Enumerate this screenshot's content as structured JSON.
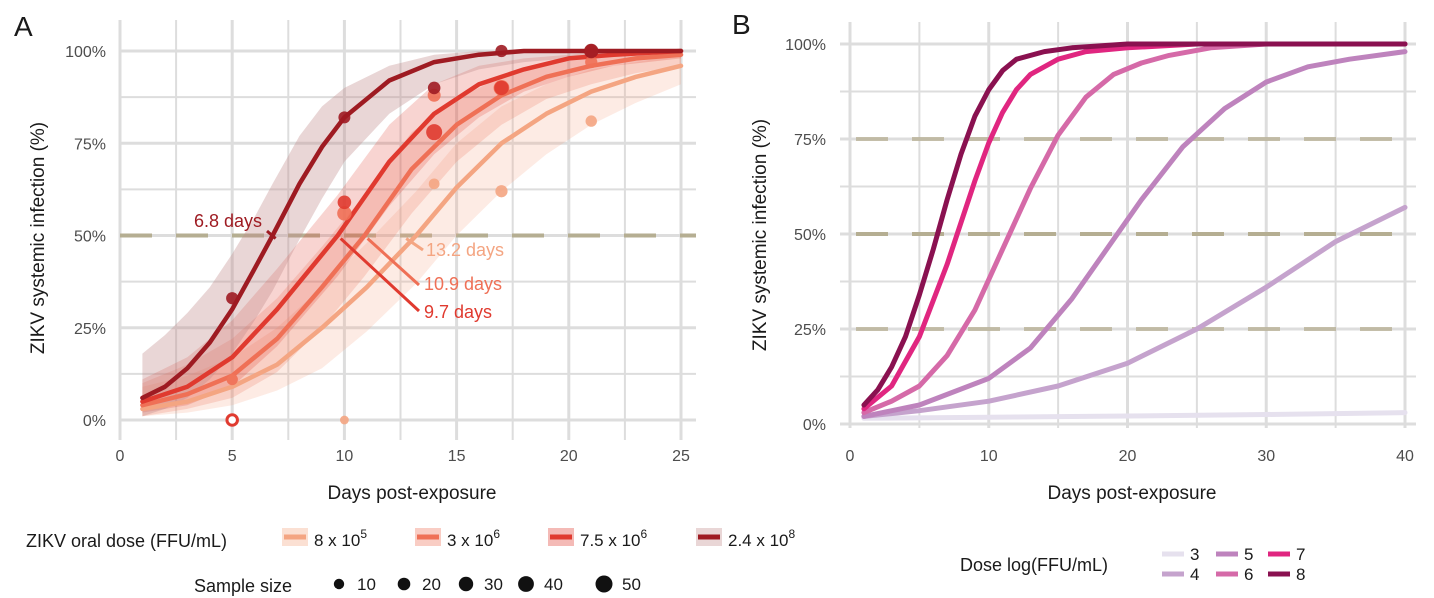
{
  "colors": {
    "grid": "#dddddd",
    "ref_line": "#b5ae92",
    "dose_A": [
      "#f4a582",
      "#ef7056",
      "#e03a2f",
      "#9e1b22"
    ],
    "dose_B": [
      "#e6e1ee",
      "#c5a3cd",
      "#be83bd",
      "#d56aa8",
      "#e02680",
      "#8a1150"
    ]
  },
  "chart_data": [
    {
      "panel": "A",
      "type": "line",
      "xlabel": "Days post-exposure",
      "ylabel": "ZIKV systemic infection (%)",
      "xlim": [
        0,
        25.5
      ],
      "ylim": [
        -0.03,
        1.04
      ],
      "x_ticks": [
        "0",
        "5",
        "10",
        "15",
        "20",
        "25"
      ],
      "y_ticks": [
        "0%",
        "25%",
        "50%",
        "75%",
        "100%"
      ],
      "grid": true,
      "reference_lines": [
        0.5
      ],
      "series": [
        {
          "name": "8 x 10^5",
          "label_base": "8 x 10",
          "label_exp": "5",
          "x": [
            1,
            3,
            5,
            7,
            9,
            11,
            13.2,
            15,
            17,
            19,
            21,
            23,
            25
          ],
          "y": [
            0.03,
            0.05,
            0.09,
            0.15,
            0.25,
            0.36,
            0.5,
            0.63,
            0.75,
            0.83,
            0.89,
            0.93,
            0.96
          ],
          "ci_lower": [
            0.01,
            0.02,
            0.04,
            0.08,
            0.14,
            0.24,
            0.37,
            0.5,
            0.62,
            0.72,
            0.8,
            0.86,
            0.91
          ],
          "ci_upper": [
            0.09,
            0.12,
            0.17,
            0.25,
            0.36,
            0.48,
            0.62,
            0.75,
            0.85,
            0.91,
            0.95,
            0.97,
            0.99
          ],
          "points": [
            {
              "x": 5,
              "y": 0.11,
              "n": 10
            },
            {
              "x": 10,
              "y": 0.0,
              "n": 5
            },
            {
              "x": 14,
              "y": 0.64,
              "n": 12
            },
            {
              "x": 17,
              "y": 0.62,
              "n": 18
            },
            {
              "x": 21,
              "y": 0.81,
              "n": 14
            }
          ]
        },
        {
          "name": "3 x 10^6",
          "label_base": "3 x 10",
          "label_exp": "6",
          "x": [
            1,
            3,
            5,
            7,
            9,
            10.9,
            13,
            15,
            17,
            19,
            21,
            23,
            25
          ],
          "y": [
            0.04,
            0.07,
            0.12,
            0.22,
            0.36,
            0.5,
            0.68,
            0.8,
            0.88,
            0.93,
            0.96,
            0.98,
            0.99
          ],
          "ci_lower": [
            0.01,
            0.03,
            0.06,
            0.13,
            0.25,
            0.39,
            0.56,
            0.7,
            0.8,
            0.87,
            0.91,
            0.94,
            0.96
          ],
          "ci_upper": [
            0.1,
            0.15,
            0.22,
            0.33,
            0.47,
            0.61,
            0.78,
            0.87,
            0.93,
            0.97,
            0.99,
            0.99,
            1.0
          ],
          "points": [
            {
              "x": 5,
              "y": 0.11,
              "n": 14
            },
            {
              "x": 10,
              "y": 0.56,
              "n": 30
            },
            {
              "x": 14,
              "y": 0.88,
              "n": 22
            },
            {
              "x": 17,
              "y": 0.9,
              "n": 40
            },
            {
              "x": 21,
              "y": 0.97,
              "n": 18
            }
          ]
        },
        {
          "name": "7.5 x 10^6",
          "label_base": "7.5 x 10",
          "label_exp": "6",
          "x": [
            1,
            3,
            5,
            7,
            9.7,
            12,
            14,
            16,
            18,
            20,
            22,
            25
          ],
          "y": [
            0.05,
            0.09,
            0.17,
            0.3,
            0.5,
            0.7,
            0.83,
            0.91,
            0.95,
            0.98,
            0.99,
            1.0
          ],
          "ci_lower": [
            0.02,
            0.04,
            0.09,
            0.2,
            0.39,
            0.58,
            0.72,
            0.82,
            0.89,
            0.93,
            0.96,
            0.98
          ],
          "ci_upper": [
            0.11,
            0.17,
            0.27,
            0.41,
            0.61,
            0.8,
            0.91,
            0.96,
            0.98,
            0.99,
            1.0,
            1.0
          ],
          "points": [
            {
              "x": 5,
              "y": 0.0,
              "n": 25
            },
            {
              "x": 10,
              "y": 0.59,
              "n": 26
            },
            {
              "x": 14,
              "y": 0.78,
              "n": 42
            },
            {
              "x": 17,
              "y": 0.9,
              "n": 30
            },
            {
              "x": 21,
              "y": 1.0,
              "n": 24
            }
          ]
        },
        {
          "name": "2.4 x 10^8",
          "label_base": "2.4 x 10",
          "label_exp": "8",
          "x": [
            1,
            2,
            3,
            4,
            5,
            6,
            6.8,
            8,
            9,
            10,
            12,
            14,
            16,
            18,
            20,
            25
          ],
          "y": [
            0.06,
            0.09,
            0.14,
            0.21,
            0.3,
            0.41,
            0.5,
            0.64,
            0.74,
            0.82,
            0.92,
            0.97,
            0.99,
            1.0,
            1.0,
            1.0
          ],
          "ci_lower": [
            0.01,
            0.03,
            0.06,
            0.11,
            0.18,
            0.27,
            0.35,
            0.49,
            0.6,
            0.7,
            0.83,
            0.91,
            0.95,
            0.97,
            0.98,
            0.99
          ],
          "ci_upper": [
            0.18,
            0.23,
            0.29,
            0.36,
            0.45,
            0.55,
            0.64,
            0.77,
            0.85,
            0.9,
            0.96,
            0.99,
            1.0,
            1.0,
            1.0,
            1.0
          ],
          "points": [
            {
              "x": 5,
              "y": 0.33,
              "n": 18
            },
            {
              "x": 10,
              "y": 0.82,
              "n": 17
            },
            {
              "x": 14,
              "y": 0.9,
              "n": 20
            },
            {
              "x": 17,
              "y": 1.0,
              "n": 18
            },
            {
              "x": 21,
              "y": 1.0,
              "n": 30
            }
          ]
        }
      ],
      "annotations": [
        {
          "text": "6.8 days",
          "x": 6.8,
          "series": 3
        },
        {
          "text": "13.2 days",
          "x": 13.2,
          "series": 0
        },
        {
          "text": "10.9 days",
          "x": 10.9,
          "series": 1
        },
        {
          "text": "9.7 days",
          "x": 9.7,
          "series": 2
        }
      ],
      "legend_dose_title": "ZIKV oral dose (FFU/mL)",
      "legend_size_title": "Sample size",
      "legend_size_values": [
        10,
        20,
        30,
        40,
        50
      ]
    },
    {
      "panel": "B",
      "type": "line",
      "xlabel": "Days post-exposure",
      "ylabel": "ZIKV systemic infection (%)",
      "xlim": [
        -0.5,
        41
      ],
      "ylim": [
        -0.01,
        1.05
      ],
      "x_ticks": [
        "0",
        "10",
        "20",
        "30",
        "40"
      ],
      "y_ticks": [
        "0%",
        "25%",
        "50%",
        "75%",
        "100%"
      ],
      "grid": true,
      "reference_lines": [
        0.25,
        0.5,
        0.75
      ],
      "legend_title": "Dose log(FFU/mL)",
      "series": [
        {
          "name": "3",
          "x": [
            1,
            10,
            20,
            30,
            40
          ],
          "y": [
            0.015,
            0.018,
            0.021,
            0.025,
            0.03
          ]
        },
        {
          "name": "4",
          "x": [
            1,
            5,
            10,
            15,
            20,
            25,
            30,
            35,
            40
          ],
          "y": [
            0.02,
            0.035,
            0.06,
            0.1,
            0.16,
            0.25,
            0.36,
            0.48,
            0.57
          ]
        },
        {
          "name": "5",
          "x": [
            1,
            5,
            10,
            13,
            16,
            18.5,
            21,
            24,
            27,
            30,
            33,
            36,
            40
          ],
          "y": [
            0.02,
            0.05,
            0.12,
            0.2,
            0.33,
            0.46,
            0.59,
            0.73,
            0.83,
            0.9,
            0.94,
            0.96,
            0.98
          ]
        },
        {
          "name": "6",
          "x": [
            1,
            3,
            5,
            7,
            9,
            11,
            13,
            15,
            17,
            19,
            21,
            23,
            26,
            30,
            40
          ],
          "y": [
            0.03,
            0.06,
            0.1,
            0.18,
            0.3,
            0.46,
            0.62,
            0.76,
            0.86,
            0.92,
            0.95,
            0.97,
            0.99,
            1.0,
            1.0
          ]
        },
        {
          "name": "7",
          "x": [
            1,
            3,
            5,
            7,
            8,
            9,
            10,
            11,
            12,
            13,
            15,
            17,
            20,
            25,
            40
          ],
          "y": [
            0.04,
            0.1,
            0.23,
            0.42,
            0.53,
            0.64,
            0.74,
            0.82,
            0.88,
            0.92,
            0.96,
            0.98,
            0.99,
            1.0,
            1.0
          ]
        },
        {
          "name": "8",
          "x": [
            1,
            2,
            3,
            4,
            5,
            6,
            7,
            8,
            9,
            10,
            11,
            12,
            14,
            16,
            20,
            40
          ],
          "y": [
            0.05,
            0.09,
            0.15,
            0.23,
            0.34,
            0.46,
            0.59,
            0.71,
            0.81,
            0.88,
            0.93,
            0.96,
            0.98,
            0.99,
            1.0,
            1.0
          ]
        }
      ]
    }
  ]
}
